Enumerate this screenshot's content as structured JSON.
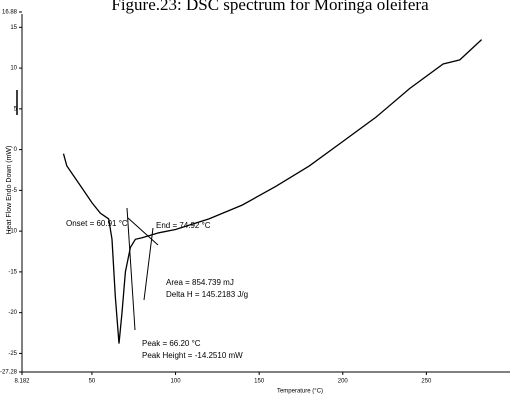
{
  "chart_data": {
    "type": "line",
    "title": "Figure.23: DSC spectrum for Moringa oleifera",
    "x_label": "Temperature (°C)",
    "y_label": "Heat Flow Endo Down (mW)",
    "x": [
      33,
      35,
      40,
      45,
      50,
      55,
      60,
      62,
      64,
      66.2,
      68,
      70,
      73,
      76,
      80,
      90,
      100,
      120,
      140,
      160,
      180,
      200,
      220,
      240,
      260,
      270,
      283
    ],
    "series": [
      {
        "color": "#000000",
        "values": [
          -0.5,
          -2,
          -3.5,
          -5,
          -6.5,
          -7.8,
          -8.5,
          -11,
          -18,
          -23.8,
          -20,
          -15,
          -12,
          -11,
          -10.8,
          -10.2,
          -9.8,
          -8.5,
          -6.8,
          -4.5,
          -2,
          1,
          4,
          7.5,
          10.5,
          11,
          13.5
        ]
      }
    ],
    "xlim": [
      8.182,
      300
    ],
    "xticks": [
      8.182,
      50,
      100,
      150,
      200,
      250
    ],
    "ylim": [
      -27.28,
      16.88
    ],
    "yticks": [
      16.88,
      15,
      10,
      5,
      0,
      -5,
      -10,
      -15,
      -20,
      -25,
      -27.28
    ],
    "annotations": [
      "Onset = 60.91 °C",
      "End = 74.92 °C",
      "Area = 854.739 mJ",
      "Delta H = 145.2183 J/g",
      "Peak = 66.20 °C",
      "Peak Height = -14.2510 mW"
    ]
  }
}
